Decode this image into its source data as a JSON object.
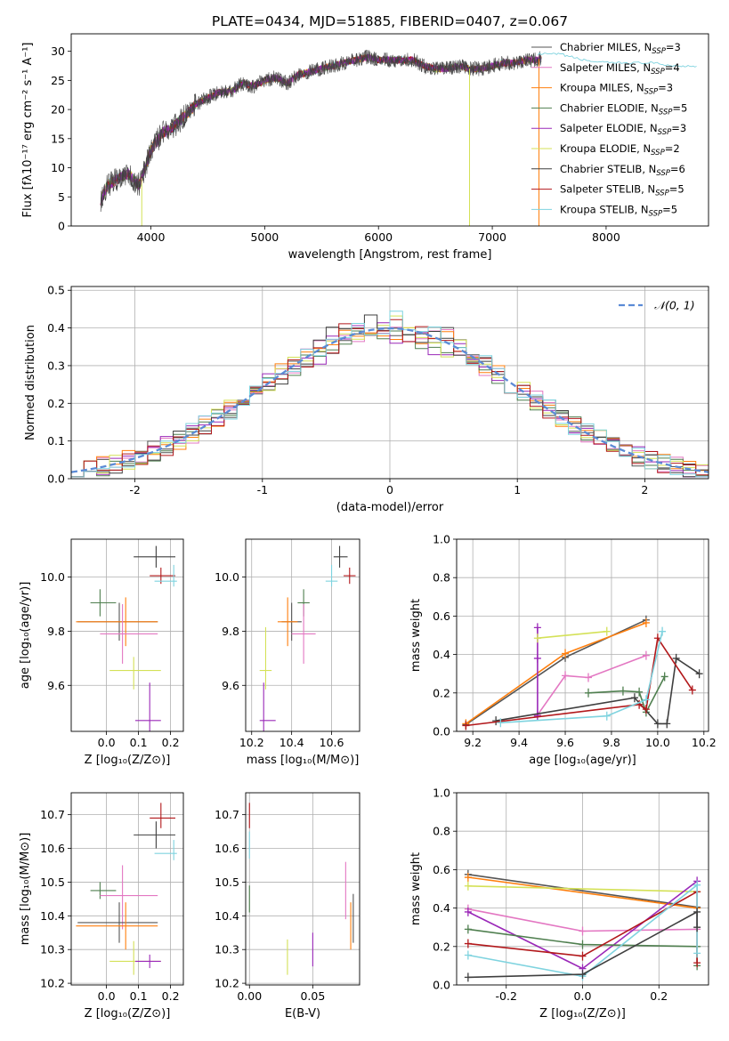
{
  "figure": {
    "title": "PLATE=0434, MJD=51885, FIBERID=0407, z=0.067"
  },
  "colors": {
    "c0": "#555555",
    "c1": "#e377c2",
    "c2": "#ff7f0e",
    "c3": "#4f7f4f",
    "c4": "#9a28b8",
    "c5": "#d4e157",
    "c6": "#3f3f3f",
    "c7": "#b2181b",
    "c8": "#7fd3df",
    "gauss": "#5b8bd6",
    "grid": "#b0b0b0"
  },
  "chart_data": [
    {
      "id": "spectrum",
      "type": "line",
      "xlabel": "wavelength [Angstrom, rest frame]",
      "ylabel": "Flux [fλ10⁻¹⁷ erg cm⁻² s⁻¹ A⁻¹]",
      "xlim": [
        3300,
        8900
      ],
      "ylim": [
        0,
        33
      ],
      "xticks": [
        4000,
        5000,
        6000,
        7000,
        8000
      ],
      "yticks": [
        0,
        5,
        10,
        15,
        20,
        25,
        30
      ],
      "legend_position": "top-right",
      "legend": [
        {
          "label": "Chabrier MILES, N",
          "sub": "SSP",
          "suffix": "=3",
          "color": "c0"
        },
        {
          "label": "Salpeter MILES, N",
          "sub": "SSP",
          "suffix": "=4",
          "color": "c1"
        },
        {
          "label": "Kroupa MILES, N",
          "sub": "SSP",
          "suffix": "=3",
          "color": "c2"
        },
        {
          "label": "Chabrier ELODIE, N",
          "sub": "SSP",
          "suffix": "=5",
          "color": "c3"
        },
        {
          "label": "Salpeter ELODIE, N",
          "sub": "SSP",
          "suffix": "=3",
          "color": "c4"
        },
        {
          "label": "Kroupa ELODIE, N",
          "sub": "SSP",
          "suffix": "=2",
          "color": "c5"
        },
        {
          "label": "Chabrier STELIB, N",
          "sub": "SSP",
          "suffix": "=6",
          "color": "c6"
        },
        {
          "label": "Salpeter STELIB, N",
          "sub": "SSP",
          "suffix": "=5",
          "color": "c7"
        },
        {
          "label": "Kroupa STELIB, N",
          "sub": "SSP",
          "suffix": "=5",
          "color": "c8"
        }
      ],
      "observed": {
        "x": [
          3560,
          3620,
          3700,
          3800,
          3900,
          4000,
          4100,
          4200,
          4300,
          4400,
          4500,
          4600,
          4700,
          4800,
          4900,
          5000,
          5100,
          5200,
          5300,
          5400,
          5500,
          5600,
          5700,
          5800,
          5900,
          6000,
          6100,
          6200,
          6300,
          6400,
          6500,
          6600,
          6700,
          6800,
          6900,
          7000,
          7100,
          7200,
          7300,
          7400,
          7430
        ],
        "y": [
          4.5,
          7,
          8,
          9,
          7,
          13,
          16,
          17,
          19,
          21,
          22,
          23,
          23,
          24.5,
          24,
          25,
          25.5,
          24.5,
          26,
          26.5,
          27,
          27.5,
          28,
          28.5,
          29,
          28.5,
          28.5,
          28.5,
          28.5,
          27.5,
          27,
          27,
          27.5,
          27,
          27,
          27.5,
          28,
          28,
          28.5,
          28.5,
          29
        ]
      },
      "model_x": [
        7400,
        7600,
        7800,
        8000,
        8200,
        8400,
        8600,
        8800
      ],
      "model_y": [
        29.5,
        29.5,
        28.5,
        28,
        28,
        28,
        27.5,
        27.5
      ],
      "dropouts": [
        {
          "x": 3920,
          "color": "c5"
        },
        {
          "x": 6800,
          "color": "c5"
        },
        {
          "x": 7410,
          "color": "c2"
        }
      ]
    },
    {
      "id": "residuals",
      "type": "bar",
      "xlabel": "(data-model)/error",
      "ylabel": "Normed distribution",
      "xlim": [
        -2.5,
        2.5
      ],
      "ylim": [
        0,
        0.51
      ],
      "xticks": [
        -2,
        -1,
        0,
        1,
        2
      ],
      "yticks": [
        0.0,
        0.1,
        0.2,
        0.3,
        0.4,
        0.5
      ],
      "legend": [
        {
          "label": "𝒩(0, 1)",
          "color": "gauss",
          "style": "dashed"
        }
      ],
      "legend_position": "top-right",
      "bin_width": 0.1,
      "gaussian": {
        "mean": 0,
        "sigma": 1
      }
    },
    {
      "id": "age-vs-Z",
      "type": "scatter",
      "xlabel": "Z [log₁₀(Z/Z⊙)]",
      "ylabel": "age  [log₁₀(age/yr)]",
      "xlim": [
        -0.11,
        0.24
      ],
      "ylim": [
        9.43,
        10.14
      ],
      "xticks": [
        0.0,
        0.1,
        0.2
      ],
      "yticks": [
        9.6,
        9.8,
        10.0
      ],
      "points": [
        {
          "color": "c6",
          "x": 0.155,
          "xerr": [
            0.07,
            0.06
          ],
          "y": 10.075,
          "yerr": [
            0.04,
            0.04
          ]
        },
        {
          "color": "c7",
          "x": 0.17,
          "xerr": [
            0.035,
            0.045
          ],
          "y": 10.005,
          "yerr": [
            0.03,
            0.03
          ]
        },
        {
          "color": "c8",
          "x": 0.21,
          "xerr": [
            0.06,
            0.01
          ],
          "y": 9.985,
          "yerr": [
            0.02,
            0.06
          ]
        },
        {
          "color": "c3",
          "x": -0.02,
          "xerr": [
            0.03,
            0.05
          ],
          "y": 9.905,
          "yerr": [
            0.05,
            0.05
          ]
        },
        {
          "color": "c0",
          "x": 0.04,
          "xerr": [
            0.13,
            0.12
          ],
          "y": 9.835,
          "yerr": [
            0.07,
            0.07
          ]
        },
        {
          "color": "c2",
          "x": 0.06,
          "xerr": [
            0.155,
            0.1
          ],
          "y": 9.835,
          "yerr": [
            0.09,
            0.09
          ]
        },
        {
          "color": "c1",
          "x": 0.05,
          "xerr": [
            0.07,
            0.11
          ],
          "y": 9.79,
          "yerr": [
            0.11,
            0.11
          ]
        },
        {
          "color": "c5",
          "x": 0.085,
          "xerr": [
            0.075,
            0.085
          ],
          "y": 9.655,
          "yerr": [
            0.07,
            0.05
          ]
        },
        {
          "color": "c4",
          "x": 0.135,
          "xerr": [
            0.045,
            0.035
          ],
          "y": 9.47,
          "yerr": [
            0.06,
            0.14
          ]
        }
      ]
    },
    {
      "id": "age-vs-mass",
      "type": "scatter",
      "xlabel": "mass [log₁₀(M/M⊙)]",
      "ylabel": "",
      "xlim": [
        10.17,
        10.74
      ],
      "ylim": [
        9.43,
        10.14
      ],
      "xticks": [
        10.2,
        10.4,
        10.6
      ],
      "yticks": [
        9.6,
        9.8,
        10.0
      ],
      "points": [
        {
          "color": "c6",
          "x": 10.64,
          "xerr": [
            0.03,
            0.04
          ],
          "y": 10.075,
          "yerr": [
            0.04,
            0.04
          ]
        },
        {
          "color": "c7",
          "x": 10.69,
          "xerr": [
            0.03,
            0.03
          ],
          "y": 10.005,
          "yerr": [
            0.03,
            0.03
          ]
        },
        {
          "color": "c8",
          "x": 10.6,
          "xerr": [
            0.03,
            0.03
          ],
          "y": 9.985,
          "yerr": [
            0.02,
            0.06
          ]
        },
        {
          "color": "c3",
          "x": 10.46,
          "xerr": [
            0.03,
            0.03
          ],
          "y": 9.905,
          "yerr": [
            0.05,
            0.05
          ]
        },
        {
          "color": "c0",
          "x": 10.4,
          "xerr": [
            0.05,
            0.05
          ],
          "y": 9.835,
          "yerr": [
            0.07,
            0.07
          ]
        },
        {
          "color": "c2",
          "x": 10.38,
          "xerr": [
            0.05,
            0.05
          ],
          "y": 9.835,
          "yerr": [
            0.09,
            0.09
          ]
        },
        {
          "color": "c1",
          "x": 10.46,
          "xerr": [
            0.06,
            0.06
          ],
          "y": 9.79,
          "yerr": [
            0.11,
            0.11
          ]
        },
        {
          "color": "c5",
          "x": 10.27,
          "xerr": [
            0.03,
            0.03
          ],
          "y": 9.655,
          "yerr": [
            0.07,
            0.16
          ]
        },
        {
          "color": "c4",
          "x": 10.26,
          "xerr": [
            0.02,
            0.06
          ],
          "y": 9.47,
          "yerr": [
            0.06,
            0.14
          ]
        }
      ]
    },
    {
      "id": "weight-vs-age",
      "type": "line",
      "xlabel": "age  [log₁₀(age/yr)]",
      "ylabel": "mass weight",
      "xlim": [
        9.13,
        10.22
      ],
      "ylim": [
        0,
        1.0
      ],
      "xticks": [
        9.2,
        9.4,
        9.6,
        9.8,
        10.0,
        10.2
      ],
      "yticks": [
        0.0,
        0.2,
        0.4,
        0.6,
        0.8,
        1.0
      ],
      "series": [
        {
          "color": "c0",
          "x": [
            9.17,
            9.6,
            9.95
          ],
          "y": [
            0.035,
            0.385,
            0.58
          ]
        },
        {
          "color": "c2",
          "x": [
            9.17,
            9.6,
            9.95
          ],
          "y": [
            0.04,
            0.405,
            0.565
          ]
        },
        {
          "color": "c1",
          "x": [
            9.48,
            9.6,
            9.7,
            9.95
          ],
          "y": [
            0.085,
            0.29,
            0.28,
            0.395
          ]
        },
        {
          "color": "c3",
          "x": [
            9.7,
            9.85,
            9.92,
            9.95,
            10.03
          ],
          "y": [
            0.2,
            0.21,
            0.205,
            0.1,
            0.285
          ]
        },
        {
          "color": "c4",
          "x": [
            9.48,
            9.48,
            9.48
          ],
          "y": [
            0.08,
            0.38,
            0.54
          ]
        },
        {
          "color": "c5",
          "x": [
            9.48,
            9.78
          ],
          "y": [
            0.485,
            0.52
          ]
        },
        {
          "color": "c6",
          "x": [
            9.3,
            9.9,
            10.0,
            10.04,
            10.08,
            10.18
          ],
          "y": [
            0.055,
            0.175,
            0.04,
            0.04,
            0.38,
            0.3
          ]
        },
        {
          "color": "c7",
          "x": [
            9.17,
            9.92,
            9.95,
            10.0,
            10.15
          ],
          "y": [
            0.03,
            0.14,
            0.115,
            0.485,
            0.215
          ]
        },
        {
          "color": "c8",
          "x": [
            9.32,
            9.78,
            9.95,
            10.02
          ],
          "y": [
            0.045,
            0.08,
            0.165,
            0.52
          ]
        }
      ]
    },
    {
      "id": "mass-vs-Z",
      "type": "scatter",
      "xlabel": "Z [log₁₀(Z/Z⊙)]",
      "ylabel": "mass [log₁₀(M/M⊙)]",
      "xlim": [
        -0.11,
        0.24
      ],
      "ylim": [
        10.195,
        10.765
      ],
      "xticks": [
        0.0,
        0.1,
        0.2
      ],
      "yticks": [
        10.2,
        10.3,
        10.4,
        10.5,
        10.6,
        10.7
      ],
      "points": [
        {
          "color": "c7",
          "x": 0.17,
          "xerr": [
            0.035,
            0.045
          ],
          "y": 10.69,
          "yerr": [
            0.03,
            0.045
          ]
        },
        {
          "color": "c6",
          "x": 0.155,
          "xerr": [
            0.07,
            0.06
          ],
          "y": 10.64,
          "yerr": [
            0.04,
            0.04
          ]
        },
        {
          "color": "c8",
          "x": 0.21,
          "xerr": [
            0.06,
            0.01
          ],
          "y": 10.585,
          "yerr": [
            0.02,
            0.04
          ]
        },
        {
          "color": "c3",
          "x": -0.02,
          "xerr": [
            0.03,
            0.05
          ],
          "y": 10.475,
          "yerr": [
            0.025,
            0.025
          ]
        },
        {
          "color": "c1",
          "x": 0.05,
          "xerr": [
            0.07,
            0.11
          ],
          "y": 10.46,
          "yerr": [
            0.1,
            0.09
          ]
        },
        {
          "color": "c0",
          "x": 0.04,
          "xerr": [
            0.13,
            0.12
          ],
          "y": 10.38,
          "yerr": [
            0.06,
            0.06
          ]
        },
        {
          "color": "c2",
          "x": 0.06,
          "xerr": [
            0.155,
            0.1
          ],
          "y": 10.37,
          "yerr": [
            0.07,
            0.07
          ]
        },
        {
          "color": "c5",
          "x": 0.085,
          "xerr": [
            0.075,
            0.085
          ],
          "y": 10.265,
          "yerr": [
            0.04,
            0.06
          ]
        },
        {
          "color": "c4",
          "x": 0.135,
          "xerr": [
            0.045,
            0.035
          ],
          "y": 10.265,
          "yerr": [
            0.02,
            0.02
          ]
        }
      ]
    },
    {
      "id": "mass-vs-EBV",
      "type": "scatter",
      "xlabel": "E(B-V)",
      "ylabel": "",
      "xlim": [
        -0.003,
        0.087
      ],
      "ylim": [
        10.195,
        10.765
      ],
      "xticks": [
        0.0,
        0.05
      ],
      "yticks": [
        10.2,
        10.3,
        10.4,
        10.5,
        10.6,
        10.7
      ],
      "points": [
        {
          "color": "c7",
          "x": 0.0,
          "xerr": [
            0,
            0
          ],
          "y": 10.69,
          "yerr": [
            0.03,
            0.045
          ]
        },
        {
          "color": "c8",
          "x": 0.0,
          "xerr": [
            0,
            0
          ],
          "y": 10.61,
          "yerr": [
            0.04,
            0.04
          ]
        },
        {
          "color": "c3",
          "x": 0.0,
          "xerr": [
            0,
            0
          ],
          "y": 10.45,
          "yerr": [
            0.04,
            0.04
          ]
        },
        {
          "color": "c1",
          "x": 0.076,
          "xerr": [
            0,
            0
          ],
          "y": 10.47,
          "yerr": [
            0.08,
            0.09
          ]
        },
        {
          "color": "c0",
          "x": 0.082,
          "xerr": [
            0,
            0
          ],
          "y": 10.38,
          "yerr": [
            0.06,
            0.085
          ]
        },
        {
          "color": "c2",
          "x": 0.08,
          "xerr": [
            0,
            0
          ],
          "y": 10.37,
          "yerr": [
            0.07,
            0.07
          ]
        },
        {
          "color": "c4",
          "x": 0.05,
          "xerr": [
            0,
            0
          ],
          "y": 10.3,
          "yerr": [
            0.05,
            0.05
          ]
        },
        {
          "color": "c5",
          "x": 0.03,
          "xerr": [
            0,
            0
          ],
          "y": 10.265,
          "yerr": [
            0.04,
            0.065
          ]
        }
      ]
    },
    {
      "id": "weight-vs-Z",
      "type": "line",
      "xlabel": "Z [log₁₀(Z/Z⊙)]",
      "ylabel": "mass weight",
      "xlim": [
        -0.33,
        0.33
      ],
      "ylim": [
        0,
        1.0
      ],
      "xticks": [
        -0.2,
        0.0,
        0.2
      ],
      "yticks": [
        0.0,
        0.2,
        0.4,
        0.6,
        0.8,
        1.0
      ],
      "series": [
        {
          "color": "c0",
          "x": [
            -0.3,
            0.3
          ],
          "y": [
            0.575,
            0.405
          ]
        },
        {
          "color": "c2",
          "x": [
            -0.3,
            0.3
          ],
          "y": [
            0.56,
            0.4
          ]
        },
        {
          "color": "c5",
          "x": [
            -0.3,
            0.3
          ],
          "y": [
            0.515,
            0.485
          ]
        },
        {
          "color": "c1",
          "x": [
            -0.3,
            0.0,
            0.3
          ],
          "y": [
            0.395,
            0.28,
            0.29
          ]
        },
        {
          "color": "c4",
          "x": [
            -0.3,
            0.0,
            0.3
          ],
          "y": [
            0.38,
            0.085,
            0.54
          ]
        },
        {
          "color": "c3",
          "x": [
            -0.3,
            0.0,
            0.3,
            0.3
          ],
          "y": [
            0.29,
            0.21,
            0.2,
            0.1
          ]
        },
        {
          "color": "c7",
          "x": [
            -0.3,
            0.0,
            0.3,
            0.3
          ],
          "y": [
            0.215,
            0.15,
            0.485,
            0.115
          ]
        },
        {
          "color": "c8",
          "x": [
            -0.3,
            0.0,
            0.3,
            0.3
          ],
          "y": [
            0.155,
            0.045,
            0.52,
            0.165
          ]
        },
        {
          "color": "c6",
          "x": [
            -0.3,
            0.0,
            0.3,
            0.3
          ],
          "y": [
            0.04,
            0.055,
            0.38,
            0.3
          ]
        }
      ]
    }
  ]
}
